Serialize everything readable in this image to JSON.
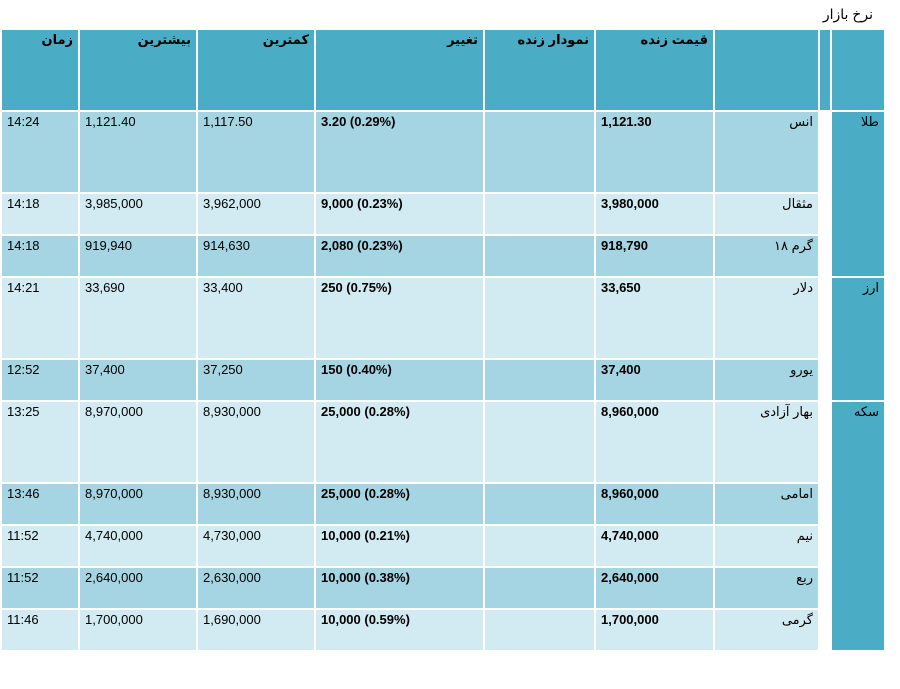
{
  "page_title": "نرخ بازار",
  "headers": {
    "live_price": "قیمت زنده",
    "live_chart": "نمودار زنده",
    "change": "تغییر",
    "low": "کمترین",
    "high": "بیشترین",
    "time": "زمان"
  },
  "categories": {
    "gold": "طلا",
    "currency": "ارز",
    "coin": "سکه"
  },
  "rows": [
    {
      "name": "انس",
      "price": "1,121.30",
      "change": "3.20 (0.29%)",
      "low": "1,117.50",
      "high": "1,121.40",
      "time": "14:24"
    },
    {
      "name": "مثقال",
      "price": "3,980,000",
      "change": "9,000 (0.23%)",
      "low": "3,962,000",
      "high": "3,985,000",
      "time": "14:18"
    },
    {
      "name": "گرم ۱۸",
      "price": "918,790",
      "change": "2,080 (0.23%)",
      "low": "914,630",
      "high": "919,940",
      "time": "14:18"
    },
    {
      "name": "دلار",
      "price": "33,650",
      "change": "250 (0.75%)",
      "low": "33,400",
      "high": "33,690",
      "time": "14:21"
    },
    {
      "name": "یورو",
      "price": "37,400",
      "change": "150 (0.40%)",
      "low": "37,250",
      "high": "37,400",
      "time": "12:52"
    },
    {
      "name": "بهار آزادی",
      "price": "8,960,000",
      "change": "25,000 (0.28%)",
      "low": "8,930,000",
      "high": "8,970,000",
      "time": "13:25"
    },
    {
      "name": "امامی",
      "price": "8,960,000",
      "change": "25,000 (0.28%)",
      "low": "8,930,000",
      "high": "8,970,000",
      "time": "13:46"
    },
    {
      "name": "نیم",
      "price": "4,740,000",
      "change": "10,000 (0.21%)",
      "low": "4,730,000",
      "high": "4,740,000",
      "time": "11:52"
    },
    {
      "name": "ربع",
      "price": "2,640,000",
      "change": "10,000 (0.38%)",
      "low": "2,630,000",
      "high": "2,640,000",
      "time": "11:52"
    },
    {
      "name": "گرمی",
      "price": "1,700,000",
      "change": "10,000 (0.59%)",
      "low": "1,690,000",
      "high": "1,700,000",
      "time": "11:46"
    }
  ]
}
